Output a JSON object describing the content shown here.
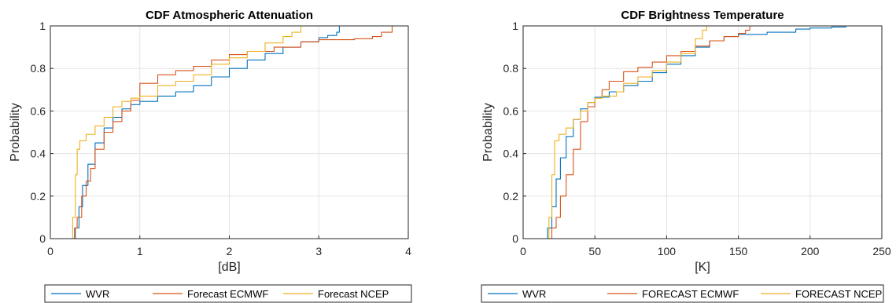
{
  "chart_data": [
    {
      "type": "line",
      "title": "CDF Atmospheric Attenuation",
      "xlabel": "[dB]",
      "ylabel": "Probability",
      "xlim": [
        0,
        4
      ],
      "ylim": [
        0,
        1
      ],
      "xticks": [
        "0",
        "1",
        "2",
        "3",
        "4"
      ],
      "yticks": [
        "0",
        "0.2",
        "0.4",
        "0.6",
        "0.8",
        "1"
      ],
      "grid": true,
      "legend_position": "bottom",
      "colors": {
        "WVR": "#0072BD",
        "ECMWF": "#D95319",
        "NCEP": "#EDB120"
      },
      "series": [
        {
          "name": "WVR",
          "color": "#0072BD",
          "x": [
            0.25,
            0.28,
            0.32,
            0.36,
            0.42,
            0.5,
            0.6,
            0.7,
            0.8,
            0.9,
            1.0,
            1.2,
            1.4,
            1.6,
            1.8,
            2.0,
            2.2,
            2.4,
            2.6,
            2.8,
            3.0,
            3.1,
            3.2,
            3.23
          ],
          "y": [
            0.0,
            0.05,
            0.15,
            0.25,
            0.35,
            0.45,
            0.52,
            0.57,
            0.61,
            0.63,
            0.645,
            0.67,
            0.69,
            0.72,
            0.76,
            0.8,
            0.84,
            0.87,
            0.9,
            0.925,
            0.945,
            0.955,
            0.97,
            1.0
          ]
        },
        {
          "name": "Forecast ECMWF",
          "color": "#D95319",
          "x": [
            0.24,
            0.27,
            0.3,
            0.35,
            0.4,
            0.45,
            0.5,
            0.6,
            0.7,
            0.8,
            0.9,
            1.0,
            1.2,
            1.4,
            1.6,
            1.8,
            2.0,
            2.2,
            2.5,
            2.8,
            3.0,
            3.4,
            3.6,
            3.7,
            3.82
          ],
          "y": [
            0.0,
            0.05,
            0.1,
            0.2,
            0.27,
            0.33,
            0.42,
            0.5,
            0.55,
            0.6,
            0.65,
            0.73,
            0.77,
            0.79,
            0.81,
            0.84,
            0.865,
            0.88,
            0.9,
            0.925,
            0.935,
            0.94,
            0.95,
            0.97,
            1.0
          ]
        },
        {
          "name": "Forecast NCEP",
          "color": "#EDB120",
          "x": [
            0.22,
            0.25,
            0.28,
            0.3,
            0.33,
            0.4,
            0.5,
            0.6,
            0.7,
            0.8,
            0.9,
            1.0,
            1.2,
            1.4,
            1.6,
            1.8,
            2.0,
            2.2,
            2.4,
            2.6,
            2.7,
            2.8
          ],
          "y": [
            0.0,
            0.1,
            0.3,
            0.42,
            0.46,
            0.49,
            0.53,
            0.57,
            0.62,
            0.645,
            0.66,
            0.67,
            0.72,
            0.74,
            0.77,
            0.82,
            0.85,
            0.88,
            0.92,
            0.95,
            0.97,
            1.0
          ]
        }
      ]
    },
    {
      "type": "line",
      "title": "CDF Brightness Temperature",
      "xlabel": "[K]",
      "ylabel": "Probability",
      "xlim": [
        0,
        250
      ],
      "ylim": [
        0,
        1
      ],
      "xticks": [
        "0",
        "50",
        "100",
        "150",
        "200",
        "250"
      ],
      "yticks": [
        "0",
        "0.2",
        "0.4",
        "0.6",
        "0.8",
        "1"
      ],
      "grid": true,
      "legend_position": "bottom",
      "colors": {
        "WVR": "#0072BD",
        "ECMWF": "#D95319",
        "NCEP": "#EDB120"
      },
      "series": [
        {
          "name": "WVR",
          "color": "#0072BD",
          "x": [
            15,
            17,
            20,
            23,
            26,
            30,
            35,
            40,
            45,
            50,
            60,
            70,
            80,
            90,
            100,
            110,
            120,
            130,
            140,
            150,
            170,
            190,
            200,
            215,
            225
          ],
          "y": [
            0.0,
            0.05,
            0.15,
            0.28,
            0.38,
            0.48,
            0.56,
            0.61,
            0.64,
            0.665,
            0.69,
            0.72,
            0.74,
            0.78,
            0.82,
            0.86,
            0.9,
            0.93,
            0.95,
            0.96,
            0.97,
            0.985,
            0.99,
            0.995,
            1.0
          ]
        },
        {
          "name": "FORECAST ECMWF",
          "color": "#D95319",
          "x": [
            17,
            20,
            23,
            26,
            30,
            35,
            40,
            45,
            50,
            55,
            60,
            70,
            80,
            90,
            100,
            110,
            120,
            130,
            140,
            150,
            155,
            158
          ],
          "y": [
            0.0,
            0.05,
            0.1,
            0.2,
            0.3,
            0.42,
            0.55,
            0.62,
            0.66,
            0.7,
            0.74,
            0.785,
            0.805,
            0.83,
            0.86,
            0.88,
            0.905,
            0.93,
            0.95,
            0.965,
            0.98,
            1.0
          ]
        },
        {
          "name": "FORECAST NCEP",
          "color": "#EDB120",
          "x": [
            16,
            18,
            20,
            22,
            25,
            30,
            35,
            40,
            45,
            50,
            55,
            60,
            65,
            70,
            80,
            90,
            100,
            110,
            120,
            125,
            128
          ],
          "y": [
            0.0,
            0.1,
            0.3,
            0.46,
            0.49,
            0.52,
            0.56,
            0.6,
            0.64,
            0.66,
            0.67,
            0.67,
            0.69,
            0.73,
            0.76,
            0.79,
            0.83,
            0.87,
            0.94,
            0.98,
            1.0
          ]
        }
      ]
    }
  ]
}
